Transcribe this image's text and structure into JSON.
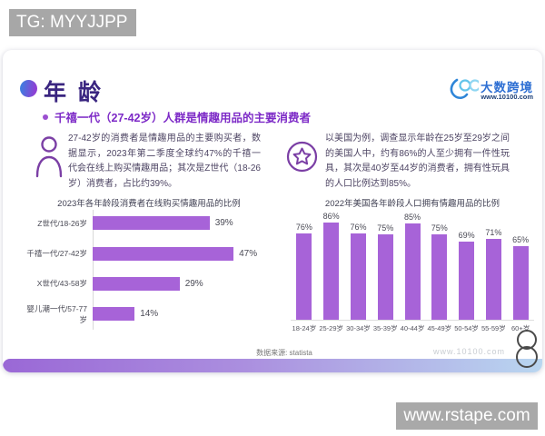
{
  "overlay": {
    "tg_tag": "TG: MYYJJPP",
    "site_watermark": "www.rstape.com"
  },
  "header": {
    "title": "年 龄",
    "subtitle": "千禧一代（27-42岁）人群是情趣用品的主要消费者"
  },
  "logo": {
    "name": "大数跨境",
    "url": "www.10100.com"
  },
  "insights": {
    "left": "27-42岁的消费者是情趣用品的主要购买者，数据显示，2023年第二季度全球约47%的千禧一代会在线上购买情趣用品；其次是Z世代（18-26岁）消费者，占比约39%。",
    "right": "以美国为例，调查显示年龄在25岁至29岁之间的美国人中，约有86%的人至少拥有一件性玩具，其次是40岁至44岁的消费者，拥有性玩具的人口比例达到85%。"
  },
  "footer": {
    "source": "数据来源: statista",
    "watermark": "www.10100.com"
  },
  "colors": {
    "bar_purple": "#a763d8",
    "title_purple": "#3a2580",
    "highlight_purple": "#7d2ac7",
    "logo_blue": "#2e6fd3"
  },
  "chart_data": [
    {
      "type": "bar",
      "orientation": "horizontal",
      "title": "2023年各年龄段消费者在线购买情趣用品的比例",
      "categories": [
        "Z世代/18-26岁",
        "千禧一代/27-42岁",
        "X世代/43-58岁",
        "婴儿潮一代/57-77岁"
      ],
      "values": [
        39,
        47,
        29,
        14
      ],
      "unit": "%",
      "xlim": [
        0,
        50
      ],
      "grid": false,
      "bar_color": "#a763d8"
    },
    {
      "type": "bar",
      "orientation": "vertical",
      "title": "2022年美国各年龄段人口拥有情趣用品的比例",
      "categories": [
        "18-24岁",
        "25-29岁",
        "30-34岁",
        "35-39岁",
        "40-44岁",
        "45-49岁",
        "50-54岁",
        "55-59岁",
        "60+岁"
      ],
      "values": [
        76,
        86,
        76,
        75,
        85,
        75,
        69,
        71,
        65
      ],
      "unit": "%",
      "ylim": [
        0,
        100
      ],
      "grid": false,
      "bar_color": "#a763d8"
    }
  ]
}
